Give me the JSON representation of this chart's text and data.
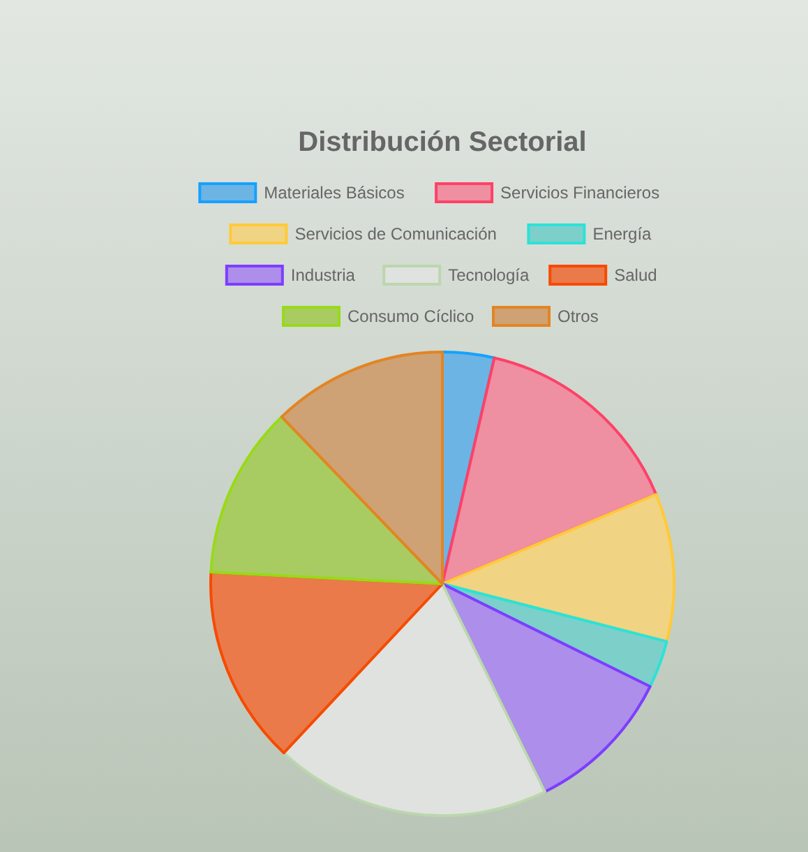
{
  "chart_data": {
    "type": "pie",
    "title": "Distribución Sectorial",
    "categories": [
      "Materiales Básicos",
      "Servicios Financieros",
      "Servicios de Comunicación",
      "Energía",
      "Industria",
      "Tecnología",
      "Salud",
      "Consumo Cíclico",
      "Otros"
    ],
    "values": [
      3.6,
      15.1,
      10.3,
      3.3,
      10.4,
      19.3,
      13.8,
      12.0,
      12.2
    ],
    "colors": [
      "#6cb4e4",
      "#ee8fa2",
      "#f0d383",
      "#7dcfca",
      "#ad8eeb",
      "#e0e2df",
      "#ea7a4a",
      "#a8cc62",
      "#cea275"
    ],
    "legend": "top"
  }
}
